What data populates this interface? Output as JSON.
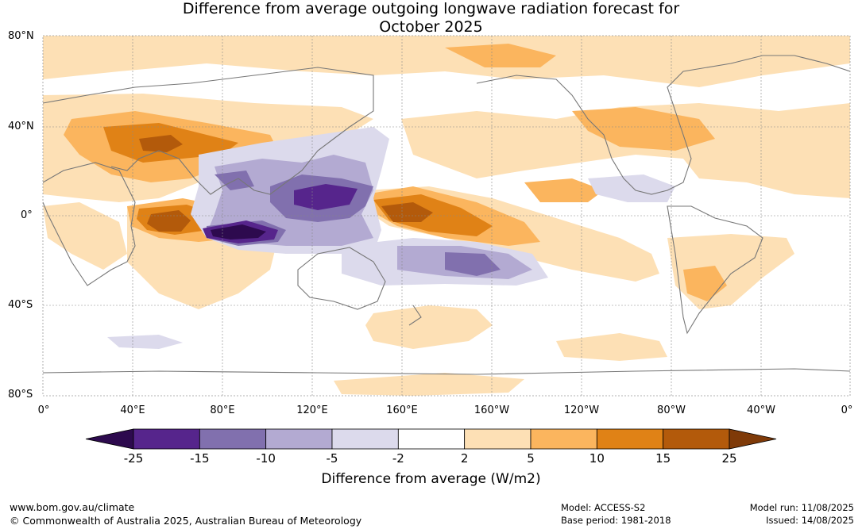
{
  "title": {
    "line1": "Difference from average outgoing longwave radiation forecast for",
    "line2": "October 2025"
  },
  "axes": {
    "lat_labels": [
      "80°N",
      "40°N",
      "0°",
      "40°S",
      "80°S"
    ],
    "lon_labels": [
      "0°",
      "40°E",
      "80°E",
      "120°E",
      "160°E",
      "160°W",
      "120°W",
      "80°W",
      "40°W",
      "0°"
    ]
  },
  "colorbar": {
    "ticks": [
      "-25",
      "-15",
      "-10",
      "-5",
      "-2",
      "2",
      "5",
      "10",
      "15",
      "25"
    ],
    "label": "Difference from average (W/m2)",
    "colors": [
      "#2d0a4e",
      "#56258c",
      "#8170ae",
      "#b3aad2",
      "#dcdaec",
      "#ffffff",
      "#fde0b5",
      "#fbb55e",
      "#e08216",
      "#b35a0b",
      "#7f3a08"
    ]
  },
  "footer": {
    "website": "www.bom.gov.au/climate",
    "copyright": "© Commonwealth of Australia 2025, Australian Bureau of Meteorology",
    "model": "Model: ACCESS-S2",
    "base_period": "Base period: 1981-2018",
    "model_run": "Model run: 11/08/2025",
    "issued": "Issued: 14/08/2025"
  }
}
